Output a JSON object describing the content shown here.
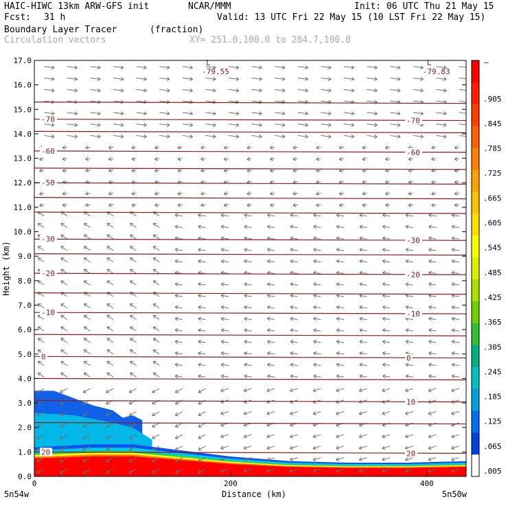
{
  "header": {
    "model": "HAIC-HIWC 13km ARW-GFS init",
    "org": "NCAR/MMM",
    "init": "Init: 06 UTC Thu 21 May 15",
    "fcst_label": "Fcst:",
    "fcst_value": "31 h",
    "valid": "Valid: 13 UTC Fri 22 May 15 (10 LST Fri 22 May 15)",
    "field": "Boundary Layer Tracer",
    "units": "(fraction)",
    "vectors": "Circulation vectors",
    "xsec": "XY= 251.0,100.0 to 284.7,100.0"
  },
  "chart_data": {
    "type": "cross-section",
    "xlabel": "Distance (km)",
    "ylabel": "Height (km)",
    "xlim": [
      0,
      440
    ],
    "ylim": [
      0,
      17
    ],
    "x_ticks": [
      0,
      200,
      400
    ],
    "y_ticks": [
      "0.0",
      "1.0",
      "2.0",
      "3.0",
      "4.0",
      "5.0",
      "6.0",
      "7.0",
      "8.0",
      "9.0",
      "10.0",
      "11.0",
      "12.0",
      "13.0",
      "14.0",
      "15.0",
      "16.0",
      "17.0"
    ],
    "left_end_label": "5n54w",
    "right_end_label": "5n50w",
    "colorbar": {
      "top_label": "–",
      "labels": [
        ".905",
        ".845",
        ".785",
        ".725",
        ".665",
        ".605",
        ".545",
        ".485",
        ".425",
        ".365",
        ".305",
        ".245",
        ".185",
        ".125",
        ".065",
        ".005"
      ],
      "colors": [
        "#ff0000",
        "#ff2000",
        "#ff4000",
        "#ff6000",
        "#ff8000",
        "#ffa000",
        "#ffc000",
        "#ffe000",
        "#ffff00",
        "#d8f000",
        "#a8e000",
        "#70d000",
        "#30c030",
        "#00b080",
        "#00c0c0",
        "#00a0e0",
        "#0070f0",
        "#0040e0",
        "#ffffff"
      ]
    },
    "tracer_layer": {
      "x": [
        0,
        60,
        100,
        150,
        200,
        260,
        320,
        380,
        440
      ],
      "top_km": [
        0.95,
        1.05,
        1.05,
        0.85,
        0.65,
        0.5,
        0.45,
        0.45,
        0.5
      ]
    },
    "blue_patch": {
      "x": [
        0,
        20,
        40,
        60,
        80,
        90,
        100,
        110
      ],
      "top_km": [
        3.5,
        3.5,
        3.2,
        2.9,
        2.7,
        2.4,
        2.5,
        2.3
      ]
    },
    "temperature_contours": [
      {
        "value": -70,
        "left_label": "-70",
        "right_label": "-70",
        "height_km": 14.6
      },
      {
        "value": -60,
        "left_label": "-60",
        "right_label": "-60",
        "height_km": 13.3
      },
      {
        "value": -50,
        "left_label": "-50",
        "right_label": "",
        "height_km": 12.0
      },
      {
        "value": -30,
        "left_label": "-30",
        "right_label": "-30",
        "height_km": 9.7
      },
      {
        "value": -20,
        "left_label": "-20",
        "right_label": "-20",
        "height_km": 8.3
      },
      {
        "value": -10,
        "left_label": "-10",
        "right_label": "-10",
        "height_km": 6.7
      },
      {
        "value": 0,
        "left_label": "0",
        "right_label": "0",
        "height_km": 4.9
      },
      {
        "value": 10,
        "left_label": "",
        "right_label": "10",
        "height_km": 3.1
      },
      {
        "value": 20,
        "left_label": "20",
        "right_label": "20",
        "height_km": 1.0
      }
    ],
    "extra_contour_heights_km": [
      15.3,
      14.1,
      12.6,
      11.4,
      10.8,
      9.1,
      7.5,
      5.8,
      4.0,
      2.2
    ],
    "minima": [
      {
        "mark": "L",
        "label": "-79.55",
        "x_km": 175,
        "height_km": 16.8
      },
      {
        "mark": "L",
        "label": "-79.83",
        "x_km": 400,
        "height_km": 16.8
      }
    ]
  }
}
